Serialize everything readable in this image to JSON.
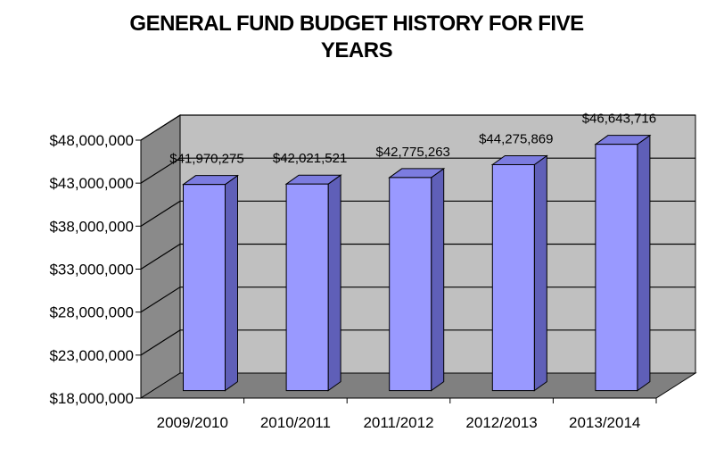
{
  "chart_data": {
    "type": "bar",
    "title_line1": "GENERAL FUND BUDGET HISTORY FOR FIVE",
    "title_line2": "YEARS",
    "categories": [
      "2009/2010",
      "2010/2011",
      "2011/2012",
      "2012/2013",
      "2013/2014"
    ],
    "values": [
      41970275,
      42021521,
      42775263,
      44275869,
      46643716
    ],
    "value_labels": [
      "$41,970,275",
      "$42,021,521",
      "$42,775,263",
      "$44,275,869",
      "$46,643,716"
    ],
    "y_ticks": [
      18000000,
      23000000,
      28000000,
      33000000,
      38000000,
      43000000,
      48000000
    ],
    "y_tick_labels": [
      "$18,000,000",
      "$23,000,000",
      "$28,000,000",
      "$33,000,000",
      "$38,000,000",
      "$43,000,000",
      "$48,000,000"
    ],
    "ylim": [
      18000000,
      48000000
    ],
    "xlabel": "",
    "ylabel": "",
    "grid": true,
    "style": "3d-column",
    "colors": {
      "bar_front": "#9999ff",
      "bar_side": "#5f5fb8",
      "bar_top": "#7c7ce0",
      "back_wall": "#c0c0c0",
      "side_wall": "#8a8a8a",
      "floor": "#808080",
      "gridline": "#000000"
    }
  }
}
